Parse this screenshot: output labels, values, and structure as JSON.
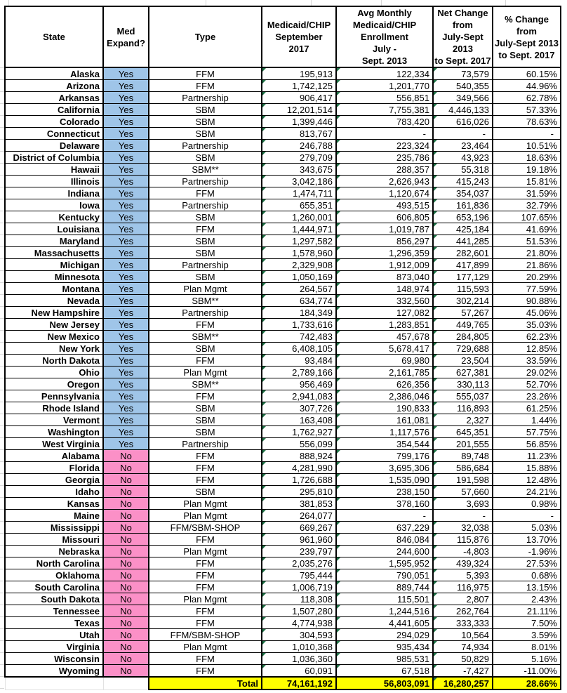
{
  "colors": {
    "expand_yes_bg": "#9FC5E8",
    "expand_no_bg": "#FB90C7",
    "total_bg": "#FFFF00",
    "error_indicator_green": "#1E7145"
  },
  "table": {
    "headers": [
      "State",
      "Med\nExpand?",
      "Type",
      "Medicaid/CHIP\nSeptember\n2017",
      "Avg Monthly\nMedicaid/CHIP\nEnrollment\nJuly -\nSept. 2013",
      "Net Change\nfrom\nJuly-Sept 2013\nto Sept. 2017",
      "% Change\nfrom\nJuly-Sept 2013\nto Sept. 2017"
    ],
    "rows": [
      {
        "name": "Alaska",
        "expand": "Yes",
        "type": "FFM",
        "sept2017": "195,913",
        "avg2013": "122,334",
        "net_change": "73,579",
        "pct_change": "60.15%"
      },
      {
        "name": "Arizona",
        "expand": "Yes",
        "type": "FFM",
        "sept2017": "1,742,125",
        "avg2013": "1,201,770",
        "net_change": "540,355",
        "pct_change": "44.96%"
      },
      {
        "name": "Arkansas",
        "expand": "Yes",
        "type": "Partnership",
        "sept2017": "906,417",
        "avg2013": "556,851",
        "net_change": "349,566",
        "pct_change": "62.78%"
      },
      {
        "name": "California",
        "expand": "Yes",
        "type": "SBM",
        "sept2017": "12,201,514",
        "avg2013": "7,755,381",
        "net_change": "4,446,133",
        "pct_change": "57.33%"
      },
      {
        "name": "Colorado",
        "expand": "Yes",
        "type": "SBM",
        "sept2017": "1,399,446",
        "avg2013": "783,420",
        "net_change": "616,026",
        "pct_change": "78.63%"
      },
      {
        "name": "Connecticut",
        "expand": "Yes",
        "type": "SBM",
        "sept2017": "813,767",
        "avg2013": "-",
        "net_change": "-",
        "pct_change": "-"
      },
      {
        "name": "Delaware",
        "expand": "Yes",
        "type": "Partnership",
        "sept2017": "246,788",
        "avg2013": "223,324",
        "net_change": "23,464",
        "pct_change": "10.51%"
      },
      {
        "name": "District of Columbia",
        "expand": "Yes",
        "type": "SBM",
        "sept2017": "279,709",
        "avg2013": "235,786",
        "net_change": "43,923",
        "pct_change": "18.63%"
      },
      {
        "name": "Hawaii",
        "expand": "Yes",
        "type": "SBM**",
        "sept2017": "343,675",
        "avg2013": "288,357",
        "net_change": "55,318",
        "pct_change": "19.18%"
      },
      {
        "name": "Illinois",
        "expand": "Yes",
        "type": "Partnership",
        "sept2017": "3,042,186",
        "avg2013": "2,626,943",
        "net_change": "415,243",
        "pct_change": "15.81%"
      },
      {
        "name": "Indiana",
        "expand": "Yes",
        "type": "FFM",
        "sept2017": "1,474,711",
        "avg2013": "1,120,674",
        "net_change": "354,037",
        "pct_change": "31.59%"
      },
      {
        "name": "Iowa",
        "expand": "Yes",
        "type": "Partnership",
        "sept2017": "655,351",
        "avg2013": "493,515",
        "net_change": "161,836",
        "pct_change": "32.79%"
      },
      {
        "name": "Kentucky",
        "expand": "Yes",
        "type": "SBM",
        "sept2017": "1,260,001",
        "avg2013": "606,805",
        "net_change": "653,196",
        "pct_change": "107.65%"
      },
      {
        "name": "Louisiana",
        "expand": "Yes",
        "type": "FFM",
        "sept2017": "1,444,971",
        "avg2013": "1,019,787",
        "net_change": "425,184",
        "pct_change": "41.69%"
      },
      {
        "name": "Maryland",
        "expand": "Yes",
        "type": "SBM",
        "sept2017": "1,297,582",
        "avg2013": "856,297",
        "net_change": "441,285",
        "pct_change": "51.53%"
      },
      {
        "name": "Massachusetts",
        "expand": "Yes",
        "type": "SBM",
        "sept2017": "1,578,960",
        "avg2013": "1,296,359",
        "net_change": "282,601",
        "pct_change": "21.80%"
      },
      {
        "name": "Michigan",
        "expand": "Yes",
        "type": "Partnership",
        "sept2017": "2,329,908",
        "avg2013": "1,912,009",
        "net_change": "417,899",
        "pct_change": "21.86%"
      },
      {
        "name": "Minnesota",
        "expand": "Yes",
        "type": "SBM",
        "sept2017": "1,050,169",
        "avg2013": "873,040",
        "net_change": "177,129",
        "pct_change": "20.29%"
      },
      {
        "name": "Montana",
        "expand": "Yes",
        "type": "Plan Mgmt",
        "sept2017": "264,567",
        "avg2013": "148,974",
        "net_change": "115,593",
        "pct_change": "77.59%"
      },
      {
        "name": "Nevada",
        "expand": "Yes",
        "type": "SBM**",
        "sept2017": "634,774",
        "avg2013": "332,560",
        "net_change": "302,214",
        "pct_change": "90.88%"
      },
      {
        "name": "New Hampshire",
        "expand": "Yes",
        "type": "Partnership",
        "sept2017": "184,349",
        "avg2013": "127,082",
        "net_change": "57,267",
        "pct_change": "45.06%"
      },
      {
        "name": "New Jersey",
        "expand": "Yes",
        "type": "FFM",
        "sept2017": "1,733,616",
        "avg2013": "1,283,851",
        "net_change": "449,765",
        "pct_change": "35.03%"
      },
      {
        "name": "New Mexico",
        "expand": "Yes",
        "type": "SBM**",
        "sept2017": "742,483",
        "avg2013": "457,678",
        "net_change": "284,805",
        "pct_change": "62.23%"
      },
      {
        "name": "New York",
        "expand": "Yes",
        "type": "SBM",
        "sept2017": "6,408,105",
        "avg2013": "5,678,417",
        "net_change": "729,688",
        "pct_change": "12.85%"
      },
      {
        "name": "North Dakota",
        "expand": "Yes",
        "type": "FFM",
        "sept2017": "93,484",
        "avg2013": "69,980",
        "net_change": "23,504",
        "pct_change": "33.59%"
      },
      {
        "name": "Ohio",
        "expand": "Yes",
        "type": "Plan Mgmt",
        "sept2017": "2,789,166",
        "avg2013": "2,161,785",
        "net_change": "627,381",
        "pct_change": "29.02%"
      },
      {
        "name": "Oregon",
        "expand": "Yes",
        "type": "SBM**",
        "sept2017": "956,469",
        "avg2013": "626,356",
        "net_change": "330,113",
        "pct_change": "52.70%"
      },
      {
        "name": "Pennsylvania",
        "expand": "Yes",
        "type": "FFM",
        "sept2017": "2,941,083",
        "avg2013": "2,386,046",
        "net_change": "555,037",
        "pct_change": "23.26%"
      },
      {
        "name": "Rhode Island",
        "expand": "Yes",
        "type": "SBM",
        "sept2017": "307,726",
        "avg2013": "190,833",
        "net_change": "116,893",
        "pct_change": "61.25%"
      },
      {
        "name": "Vermont",
        "expand": "Yes",
        "type": "SBM",
        "sept2017": "163,408",
        "avg2013": "161,081",
        "net_change": "2,327",
        "pct_change": "1.44%"
      },
      {
        "name": "Washington",
        "expand": "Yes",
        "type": "SBM",
        "sept2017": "1,762,927",
        "avg2013": "1,117,576",
        "net_change": "645,351",
        "pct_change": "57.75%"
      },
      {
        "name": "West Virginia",
        "expand": "Yes",
        "type": "Partnership",
        "sept2017": "556,099",
        "avg2013": "354,544",
        "net_change": "201,555",
        "pct_change": "56.85%"
      },
      {
        "name": "Alabama",
        "expand": "No",
        "type": "FFM",
        "sept2017": "888,924",
        "avg2013": "799,176",
        "net_change": "89,748",
        "pct_change": "11.23%"
      },
      {
        "name": "Florida",
        "expand": "No",
        "type": "FFM",
        "sept2017": "4,281,990",
        "avg2013": "3,695,306",
        "net_change": "586,684",
        "pct_change": "15.88%"
      },
      {
        "name": "Georgia",
        "expand": "No",
        "type": "FFM",
        "sept2017": "1,726,688",
        "avg2013": "1,535,090",
        "net_change": "191,598",
        "pct_change": "12.48%"
      },
      {
        "name": "Idaho",
        "expand": "No",
        "type": "SBM",
        "sept2017": "295,810",
        "avg2013": "238,150",
        "net_change": "57,660",
        "pct_change": "24.21%"
      },
      {
        "name": "Kansas",
        "expand": "No",
        "type": "Plan Mgmt",
        "sept2017": "381,853",
        "avg2013": "378,160",
        "net_change": "3,693",
        "pct_change": "0.98%"
      },
      {
        "name": "Maine",
        "expand": "No",
        "type": "Plan Mgmt",
        "sept2017": "264,077",
        "avg2013": "-",
        "net_change": "-",
        "pct_change": "-"
      },
      {
        "name": "Mississippi",
        "expand": "No",
        "type": "FFM/SBM-SHOP",
        "sept2017": "669,267",
        "avg2013": "637,229",
        "net_change": "32,038",
        "pct_change": "5.03%"
      },
      {
        "name": "Missouri",
        "expand": "No",
        "type": "FFM",
        "sept2017": "961,960",
        "avg2013": "846,084",
        "net_change": "115,876",
        "pct_change": "13.70%"
      },
      {
        "name": "Nebraska",
        "expand": "No",
        "type": "Plan Mgmt",
        "sept2017": "239,797",
        "avg2013": "244,600",
        "net_change": "-4,803",
        "pct_change": "-1.96%"
      },
      {
        "name": "North Carolina",
        "expand": "No",
        "type": "FFM",
        "sept2017": "2,035,276",
        "avg2013": "1,595,952",
        "net_change": "439,324",
        "pct_change": "27.53%"
      },
      {
        "name": "Oklahoma",
        "expand": "No",
        "type": "FFM",
        "sept2017": "795,444",
        "avg2013": "790,051",
        "net_change": "5,393",
        "pct_change": "0.68%"
      },
      {
        "name": "South Carolina",
        "expand": "No",
        "type": "FFM",
        "sept2017": "1,006,719",
        "avg2013": "889,744",
        "net_change": "116,975",
        "pct_change": "13.15%"
      },
      {
        "name": "South Dakota",
        "expand": "No",
        "type": "Plan Mgmt",
        "sept2017": "118,308",
        "avg2013": "115,501",
        "net_change": "2,807",
        "pct_change": "2.43%"
      },
      {
        "name": "Tennessee",
        "expand": "No",
        "type": "FFM",
        "sept2017": "1,507,280",
        "avg2013": "1,244,516",
        "net_change": "262,764",
        "pct_change": "21.11%"
      },
      {
        "name": "Texas",
        "expand": "No",
        "type": "FFM",
        "sept2017": "4,774,938",
        "avg2013": "4,441,605",
        "net_change": "333,333",
        "pct_change": "7.50%"
      },
      {
        "name": "Utah",
        "expand": "No",
        "type": "FFM/SBM-SHOP",
        "sept2017": "304,593",
        "avg2013": "294,029",
        "net_change": "10,564",
        "pct_change": "3.59%"
      },
      {
        "name": "Virginia",
        "expand": "No",
        "type": "Plan Mgmt",
        "sept2017": "1,010,368",
        "avg2013": "935,434",
        "net_change": "74,934",
        "pct_change": "8.01%"
      },
      {
        "name": "Wisconsin",
        "expand": "No",
        "type": "FFM",
        "sept2017": "1,036,360",
        "avg2013": "985,531",
        "net_change": "50,829",
        "pct_change": "5.16%"
      },
      {
        "name": "Wyoming",
        "expand": "No",
        "type": "FFM",
        "sept2017": "60,091",
        "avg2013": "67,518",
        "net_change": "-7,427",
        "pct_change": "-11.00%"
      }
    ],
    "total_label": "Total",
    "totals": {
      "sept2017": "74,161,192",
      "avg2013": "56,803,091",
      "net_change": "16,280,257",
      "pct_change": "28.66%"
    },
    "total_error_indicators": [
      "net_change"
    ]
  }
}
